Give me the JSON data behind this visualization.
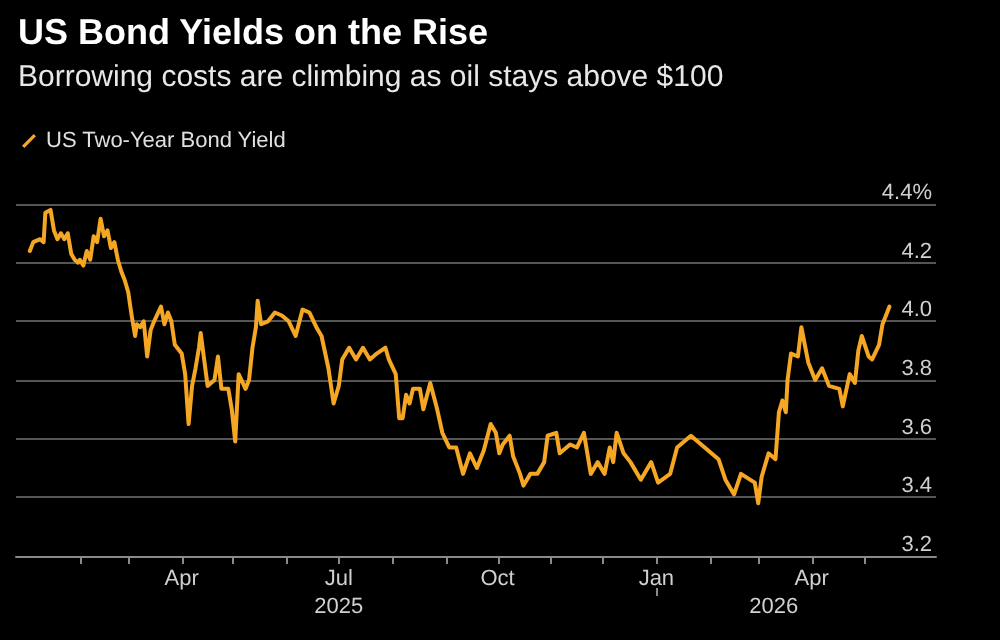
{
  "chart_data": {
    "type": "line",
    "title": "US Bond Yields on the Rise",
    "subtitle": "Borrowing costs are climbing as oil stays above $100",
    "legend": "top left",
    "grid": "y",
    "marker": "none",
    "line_style": "solid",
    "ylim": [
      3.2,
      4.4
    ],
    "yticks": [
      3.2,
      3.4,
      3.6,
      3.8,
      {
        "value": 4.0,
        "label": "4.0"
      },
      4.2,
      {
        "value": 4.4,
        "label": "4.4%"
      }
    ],
    "xlim": [
      "2024-12-26",
      "2026-06-12"
    ],
    "xticks": [
      {
        "value": "2025-02-01",
        "label": null
      },
      {
        "value": "2025-03-01",
        "label": null
      },
      {
        "value": "2025-04-01",
        "label": "Apr"
      },
      {
        "value": "2025-05-01",
        "label": null
      },
      {
        "value": "2025-06-01",
        "label": null
      },
      {
        "value": "2025-07-01",
        "label": "Jul"
      },
      {
        "value": "2025-08-01",
        "label": null
      },
      {
        "value": "2025-09-01",
        "label": null
      },
      {
        "value": "2025-10-01",
        "label": "Oct"
      },
      {
        "value": "2025-11-01",
        "label": null
      },
      {
        "value": "2025-12-01",
        "label": null
      },
      {
        "value": "2026-01-01",
        "label": "Jan"
      },
      {
        "value": "2026-02-01",
        "label": null
      },
      {
        "value": "2026-03-01",
        "label": null
      },
      {
        "value": "2026-04-01",
        "label": "Apr"
      },
      {
        "value": "2026-05-01",
        "label": null
      }
    ],
    "x2lim": [
      "2024-12-26",
      "2026-06-12"
    ],
    "x2ticks": [
      {
        "value": "2025-07-01",
        "label": "2025"
      },
      {
        "value": "2026-01-01",
        "label": null
      },
      {
        "value": "2026-03-10",
        "label": "2026"
      }
    ],
    "x": [
      "2025-01-03",
      "2025-01-05",
      "2025-01-09",
      "2025-01-11",
      "2025-01-12",
      "2025-01-15",
      "2025-01-17",
      "2025-01-19",
      "2025-01-21",
      "2025-01-23",
      "2025-01-25",
      "2025-01-27",
      "2025-01-29",
      "2025-01-31",
      "2025-02-01",
      "2025-02-03",
      "2025-02-05",
      "2025-02-07",
      "2025-02-09",
      "2025-02-11",
      "2025-02-13",
      "2025-02-15",
      "2025-02-17",
      "2025-02-19",
      "2025-02-21",
      "2025-02-23",
      "2025-02-25",
      "2025-02-27",
      "2025-03-01",
      "2025-03-03",
      "2025-03-05",
      "2025-03-06",
      "2025-03-08",
      "2025-03-10",
      "2025-03-12",
      "2025-03-14",
      "2025-03-16",
      "2025-03-20",
      "2025-03-22",
      "2025-03-24",
      "2025-03-26",
      "2025-03-28",
      "2025-04-01",
      "2025-04-03",
      "2025-04-05",
      "2025-04-07",
      "2025-04-09",
      "2025-04-11",
      "2025-04-12",
      "2025-04-14",
      "2025-04-16",
      "2025-04-20",
      "2025-04-22",
      "2025-04-24",
      "2025-04-28",
      "2025-04-30",
      "2025-05-02",
      "2025-05-04",
      "2025-05-08",
      "2025-05-10",
      "2025-05-12",
      "2025-05-14",
      "2025-05-15",
      "2025-05-17",
      "2025-05-21",
      "2025-05-25",
      "2025-05-29",
      "2025-06-02",
      "2025-06-06",
      "2025-06-10",
      "2025-06-14",
      "2025-06-18",
      "2025-06-21",
      "2025-06-25",
      "2025-06-28",
      "2025-07-01",
      "2025-07-03",
      "2025-07-07",
      "2025-07-11",
      "2025-07-15",
      "2025-07-19",
      "2025-07-23",
      "2025-07-28",
      "2025-07-30",
      "2025-08-03",
      "2025-08-05",
      "2025-08-07",
      "2025-08-09",
      "2025-08-11",
      "2025-08-13",
      "2025-08-17",
      "2025-08-19",
      "2025-08-23",
      "2025-08-27",
      "2025-08-30",
      "2025-09-03",
      "2025-09-07",
      "2025-09-11",
      "2025-09-15",
      "2025-09-19",
      "2025-09-23",
      "2025-09-27",
      "2025-09-30",
      "2025-10-02",
      "2025-10-04",
      "2025-10-08",
      "2025-10-10",
      "2025-10-14",
      "2025-10-16",
      "2025-10-20",
      "2025-10-24",
      "2025-10-28",
      "2025-10-30",
      "2025-11-04",
      "2025-11-06",
      "2025-11-12",
      "2025-11-16",
      "2025-11-20",
      "2025-11-24",
      "2025-11-28",
      "2025-12-02",
      "2025-12-05",
      "2025-12-07",
      "2025-12-09",
      "2025-12-13",
      "2025-12-17",
      "2025-12-23",
      "2025-12-29",
      "2026-01-02",
      "2026-01-09",
      "2026-01-13",
      "2026-01-21",
      "2026-01-29",
      "2026-02-06",
      "2026-02-10",
      "2026-02-15",
      "2026-02-19",
      "2026-02-27",
      "2026-03-01",
      "2026-03-03",
      "2026-03-07",
      "2026-03-11",
      "2026-03-13",
      "2026-03-15",
      "2026-03-17",
      "2026-03-18",
      "2026-03-20",
      "2026-03-24",
      "2026-03-26",
      "2026-03-30",
      "2026-04-03",
      "2026-04-07",
      "2026-04-11",
      "2026-04-17",
      "2026-04-19",
      "2026-04-23",
      "2026-04-26",
      "2026-04-28",
      "2026-04-30",
      "2026-05-04",
      "2026-05-06",
      "2026-05-10",
      "2026-05-12",
      "2026-05-16"
    ],
    "series": [
      {
        "name": "US Two-Year Bond Yield",
        "color": "#f5a623",
        "values": [
          4.24,
          4.27,
          4.28,
          4.27,
          4.37,
          4.38,
          4.31,
          4.28,
          4.3,
          4.28,
          4.3,
          4.23,
          4.21,
          4.2,
          4.21,
          4.19,
          4.24,
          4.21,
          4.29,
          4.27,
          4.35,
          4.29,
          4.31,
          4.25,
          4.27,
          4.21,
          4.17,
          4.14,
          4.1,
          4.02,
          3.95,
          3.99,
          3.98,
          4.0,
          3.88,
          3.97,
          4.0,
          4.05,
          3.99,
          4.03,
          4.0,
          3.92,
          3.89,
          3.82,
          3.65,
          3.78,
          3.84,
          3.91,
          3.96,
          3.87,
          3.78,
          3.8,
          3.88,
          3.77,
          3.77,
          3.7,
          3.59,
          3.82,
          3.77,
          3.8,
          3.91,
          3.98,
          4.07,
          3.99,
          4.0,
          4.03,
          4.02,
          4.0,
          3.95,
          4.04,
          4.03,
          3.98,
          3.95,
          3.84,
          3.72,
          3.78,
          3.87,
          3.91,
          3.87,
          3.91,
          3.87,
          3.89,
          3.91,
          3.87,
          3.82,
          3.67,
          3.67,
          3.75,
          3.72,
          3.77,
          3.77,
          3.7,
          3.79,
          3.7,
          3.62,
          3.57,
          3.57,
          3.48,
          3.55,
          3.5,
          3.56,
          3.65,
          3.62,
          3.55,
          3.58,
          3.61,
          3.54,
          3.48,
          3.44,
          3.48,
          3.48,
          3.52,
          3.61,
          3.62,
          3.55,
          3.58,
          3.57,
          3.62,
          3.48,
          3.52,
          3.48,
          3.57,
          3.52,
          3.62,
          3.55,
          3.52,
          3.46,
          3.52,
          3.45,
          3.48,
          3.57,
          3.61,
          3.57,
          3.53,
          3.46,
          3.41,
          3.48,
          3.45,
          3.38,
          3.47,
          3.55,
          3.53,
          3.69,
          3.73,
          3.69,
          3.8,
          3.89,
          3.88,
          3.98,
          3.86,
          3.8,
          3.84,
          3.78,
          3.77,
          3.71,
          3.82,
          3.79,
          3.9,
          3.95,
          3.88,
          3.87,
          3.92,
          3.99,
          4.05
        ]
      }
    ]
  }
}
